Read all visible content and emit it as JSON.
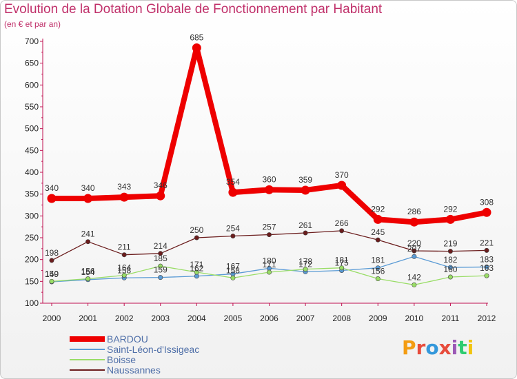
{
  "header": {
    "title": "Evolution de la Dotation Globale de Fonctionnement par Habitant",
    "subtitle": "(en € et par an)"
  },
  "logo": {
    "text": "Proxiti",
    "colors": [
      "#f39c12",
      "#e74c3c",
      "#3498db",
      "#e74c3c",
      "#9b59b6",
      "#2ecc71",
      "#f1c40f"
    ]
  },
  "chart_data": {
    "type": "line",
    "title": "Evolution de la Dotation Globale de Fonctionnement par Habitant",
    "subtitle": "(en € et par an)",
    "xlabel": "",
    "ylabel": "",
    "x": [
      "2000",
      "2001",
      "2002",
      "2003",
      "2004",
      "2005",
      "2006",
      "2007",
      "2008",
      "2009",
      "2010",
      "2011",
      "2012"
    ],
    "ylim": [
      100,
      700
    ],
    "yticks": [
      100,
      150,
      200,
      250,
      300,
      350,
      400,
      450,
      500,
      550,
      600,
      650,
      700
    ],
    "grid": false,
    "legend": "bottom-left",
    "series": [
      {
        "name": "BARDOU",
        "color": "#ee0000",
        "values": [
          340,
          340,
          343,
          346,
          685,
          354,
          360,
          359,
          370,
          292,
          286,
          292,
          308
        ]
      },
      {
        "name": "Saint-Léon-d'Issigeac",
        "color": "#5a9bd5",
        "values": [
          149,
          154,
          158,
          159,
          162,
          167,
          180,
          172,
          175,
          181,
          207,
          182,
          183
        ]
      },
      {
        "name": "Boisse",
        "color": "#99dd66",
        "values": [
          150,
          156,
          164,
          185,
          171,
          158,
          171,
          178,
          181,
          156,
          142,
          160,
          163
        ]
      },
      {
        "name": "Naussannes",
        "color": "#6b1d1d",
        "values": [
          198,
          241,
          211,
          214,
          250,
          254,
          257,
          261,
          266,
          245,
          220,
          219,
          221
        ]
      }
    ]
  }
}
